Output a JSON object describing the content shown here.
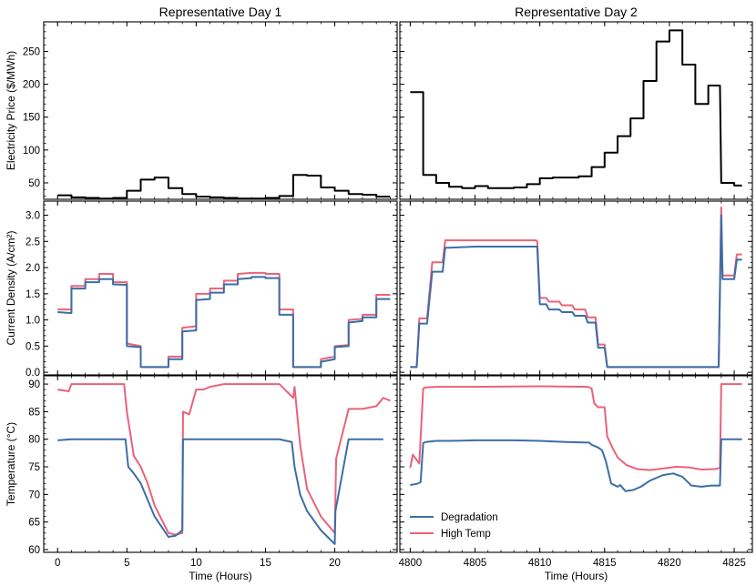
{
  "colors": {
    "price": "#000000",
    "degradation": "#3b6ea5",
    "high_temp": "#e8637a"
  },
  "chart_data": {
    "type": "line",
    "columns": [
      {
        "title": "Representative Day 1",
        "xlabel": "Time (Hours)",
        "xlim": [
          -1,
          24.5
        ],
        "xticks": [
          0,
          5,
          10,
          15,
          20
        ],
        "tick_labels": [
          "0",
          "5",
          "10",
          "15",
          "20"
        ]
      },
      {
        "title": "Representative Day 2",
        "xlabel": "Time (Hours)",
        "xlim": [
          4799.2,
          4826.4
        ],
        "xticks": [
          4800,
          4805,
          4810,
          4815,
          4820,
          4825
        ],
        "tick_labels": [
          "4800",
          "4805",
          "4810",
          "4815",
          "4820",
          "4825"
        ]
      }
    ],
    "rows": [
      {
        "ylabel": "Electricity Price ($/MWh)",
        "ylim": [
          25,
          295
        ],
        "yticks": [
          50,
          100,
          150,
          200,
          250
        ],
        "ytick_labels": [
          "50",
          "100",
          "150",
          "200",
          "250"
        ]
      },
      {
        "ylabel": "Current Density (A/cm²)",
        "ylim": [
          -0.05,
          3.27
        ],
        "yticks": [
          0.0,
          0.5,
          1.0,
          1.5,
          2.0,
          2.5,
          3.0
        ],
        "ytick_labels": [
          "0.0",
          "0.5",
          "1.0",
          "1.5",
          "2.0",
          "2.5",
          "3.0"
        ]
      },
      {
        "ylabel": "Temperature (°C)",
        "ylim": [
          59.5,
          91.5
        ],
        "yticks": [
          60,
          65,
          70,
          75,
          80,
          85,
          90
        ],
        "ytick_labels": [
          "60",
          "65",
          "70",
          "75",
          "80",
          "85",
          "90"
        ]
      }
    ],
    "legend": {
      "location": "lower-left",
      "entries": [
        "Degradation",
        "High Temp"
      ]
    },
    "day1": {
      "price": {
        "x": [
          0,
          1,
          1,
          2,
          2,
          3,
          3,
          4,
          4,
          5,
          5,
          6,
          6,
          7,
          7,
          8,
          8,
          9,
          9,
          10,
          10,
          11,
          11,
          12,
          12,
          13,
          13,
          14,
          14,
          15,
          15,
          16,
          16,
          17,
          17,
          18,
          18,
          19,
          19,
          20,
          20,
          21,
          21,
          22,
          22,
          23,
          23,
          24
        ],
        "y": [
          31,
          31,
          28,
          28,
          27,
          27,
          26,
          26,
          27,
          27,
          38,
          38,
          55,
          55,
          58,
          58,
          42,
          42,
          33,
          33,
          29,
          29,
          28,
          28,
          27,
          27,
          26,
          26,
          26,
          26,
          27,
          27,
          30,
          30,
          62,
          62,
          61,
          61,
          43,
          43,
          38,
          38,
          33,
          33,
          32,
          32,
          29,
          29
        ]
      },
      "degradation": {
        "current": {
          "x": [
            0,
            1,
            1,
            2,
            2,
            3,
            3,
            4,
            4,
            5,
            5,
            6,
            6,
            7,
            7,
            8,
            8,
            9,
            9,
            10,
            10,
            11,
            11,
            12,
            12,
            13,
            13,
            14,
            14,
            15,
            15,
            16,
            16,
            17,
            17,
            18,
            18,
            19,
            19,
            20,
            20,
            21,
            21,
            22,
            22,
            23,
            23,
            24
          ],
          "y": [
            1.15,
            1.13,
            1.6,
            1.6,
            1.72,
            1.72,
            1.78,
            1.78,
            1.68,
            1.67,
            0.5,
            0.48,
            0.1,
            0.1,
            0.1,
            0.1,
            0.25,
            0.25,
            0.78,
            0.8,
            1.38,
            1.4,
            1.52,
            1.52,
            1.68,
            1.68,
            1.78,
            1.8,
            1.82,
            1.82,
            1.8,
            1.8,
            1.1,
            1.1,
            0.1,
            0.1,
            0.1,
            0.1,
            0.2,
            0.25,
            0.48,
            0.5,
            0.95,
            0.98,
            1.05,
            1.05,
            1.4,
            1.4
          ]
        },
        "temperature": {
          "x": [
            0,
            1,
            2,
            3,
            4,
            4.9,
            5.1,
            5.5,
            6,
            7,
            8,
            8.5,
            9,
            9.05,
            10,
            15,
            16,
            16.9,
            17.1,
            17.5,
            18,
            19,
            20,
            20.05,
            21,
            23.5
          ],
          "y": [
            79.8,
            80,
            80,
            80,
            80,
            80,
            75,
            73.8,
            72,
            66,
            62.3,
            62.5,
            63.5,
            80,
            80,
            80,
            80,
            79.5,
            75,
            70,
            67,
            63.5,
            61,
            67,
            80,
            80
          ]
        }
      },
      "high_temp": {
        "current": {
          "x": [
            0,
            1,
            1,
            2,
            2,
            3,
            3,
            4,
            4,
            5,
            5,
            6,
            6,
            7,
            7,
            8,
            8,
            9,
            9,
            10,
            10,
            11,
            11,
            12,
            12,
            13,
            13,
            14,
            14,
            15,
            15,
            16,
            16,
            17,
            17,
            18,
            18,
            19,
            19,
            20,
            20,
            21,
            21,
            22,
            22,
            23,
            23,
            24
          ],
          "y": [
            1.2,
            1.2,
            1.65,
            1.65,
            1.78,
            1.78,
            1.88,
            1.88,
            1.72,
            1.72,
            0.55,
            0.5,
            0.1,
            0.1,
            0.1,
            0.1,
            0.3,
            0.3,
            0.85,
            0.88,
            1.5,
            1.5,
            1.6,
            1.6,
            1.75,
            1.75,
            1.88,
            1.9,
            1.9,
            1.9,
            1.88,
            1.88,
            1.2,
            1.2,
            0.1,
            0.1,
            0.1,
            0.1,
            0.25,
            0.3,
            0.5,
            0.52,
            1.0,
            1.02,
            1.1,
            1.1,
            1.48,
            1.48
          ]
        },
        "temperature": {
          "x": [
            0,
            0.8,
            1,
            2,
            3,
            4,
            4.8,
            5,
            5.5,
            6,
            6.5,
            7,
            8,
            8.5,
            9,
            9.05,
            9.5,
            10,
            10.5,
            11,
            12,
            13,
            14,
            15,
            16,
            16.8,
            17,
            17.1,
            17.5,
            18,
            19,
            20,
            20.1,
            21,
            22,
            23,
            23.5,
            24
          ],
          "y": [
            89,
            88.7,
            90,
            90,
            90,
            90,
            90,
            85,
            77,
            75,
            72,
            68,
            63,
            62.7,
            63,
            85,
            84.5,
            89,
            89,
            89.5,
            90,
            90,
            90,
            90,
            90,
            88,
            87.5,
            89.5,
            79,
            71,
            66,
            63,
            76.5,
            85.5,
            85.5,
            86,
            87.5,
            87
          ]
        }
      }
    },
    "day2": {
      "price": {
        "x": [
          4800,
          4801,
          4801,
          4802,
          4802,
          4803,
          4803,
          4804,
          4804,
          4805,
          4805,
          4806,
          4806,
          4807,
          4807,
          4808,
          4808,
          4809,
          4809,
          4810,
          4810,
          4811,
          4811,
          4812,
          4812,
          4813,
          4813,
          4814,
          4814,
          4815,
          4815,
          4816,
          4816,
          4817,
          4817,
          4818,
          4818,
          4819,
          4819,
          4820,
          4820,
          4821,
          4821,
          4822,
          4822,
          4823,
          4823,
          4823.9,
          4824,
          4825,
          4825,
          4825.6
        ],
        "y": [
          188,
          188,
          62,
          62,
          50,
          50,
          44,
          44,
          42,
          42,
          45,
          45,
          42,
          42,
          42,
          42,
          43,
          43,
          48,
          48,
          57,
          57,
          58,
          58,
          58,
          58,
          60,
          60,
          74,
          74,
          96,
          96,
          121,
          121,
          148,
          148,
          205,
          205,
          265,
          265,
          282,
          282,
          230,
          230,
          170,
          170,
          198,
          198,
          50,
          50,
          46,
          46
        ]
      },
      "degradation": {
        "current": {
          "x": [
            4800,
            4800.5,
            4800.7,
            4801,
            4801.3,
            4801.7,
            4801.9,
            4802.5,
            4802.7,
            4803,
            4805,
            4808,
            4809,
            4809.8,
            4810,
            4810.5,
            4810.7,
            4811.5,
            4811.7,
            4812.5,
            4812.7,
            4813.5,
            4813.7,
            4814.3,
            4814.5,
            4815,
            4815.2,
            4816,
            4820,
            4823.8,
            4824,
            4824.1,
            4824.5,
            4825,
            4825.2,
            4825.6
          ],
          "y": [
            0.1,
            0.1,
            0.93,
            0.93,
            0.93,
            1.92,
            1.92,
            1.92,
            2.38,
            2.38,
            2.4,
            2.4,
            2.4,
            2.4,
            1.3,
            1.3,
            1.2,
            1.2,
            1.15,
            1.15,
            1.08,
            1.08,
            0.95,
            0.95,
            0.47,
            0.47,
            0.1,
            0.1,
            0.1,
            0.1,
            3.0,
            1.78,
            1.78,
            1.78,
            2.15,
            2.15
          ]
        },
        "temperature": {
          "x": [
            4800,
            4800.5,
            4800.8,
            4801,
            4801.2,
            4802,
            4803,
            4805,
            4808,
            4810,
            4812,
            4813.8,
            4814,
            4814.5,
            4814.8,
            4815.1,
            4815.5,
            4816,
            4816.2,
            4816.6,
            4817.2,
            4817.8,
            4818.5,
            4819.5,
            4820.3,
            4821,
            4821.7,
            4822.5,
            4823.2,
            4823.9,
            4824,
            4825,
            4825.6
          ],
          "y": [
            71.7,
            71.9,
            72.2,
            79.3,
            79.5,
            79.7,
            79.7,
            79.8,
            79.8,
            79.7,
            79.5,
            79.4,
            79,
            78.5,
            78,
            76,
            72,
            71.4,
            71.7,
            70.6,
            70.8,
            71.4,
            72.5,
            73.5,
            73.8,
            73.2,
            71.6,
            71.4,
            71.6,
            71.6,
            80,
            80,
            80
          ]
        }
      },
      "high_temp": {
        "current": {
          "x": [
            4800,
            4800.5,
            4800.7,
            4801,
            4801.3,
            4801.7,
            4801.9,
            4802.5,
            4802.7,
            4805,
            4808,
            4809.7,
            4809.8,
            4810,
            4810.5,
            4810.7,
            4811.5,
            4811.7,
            4812.5,
            4812.7,
            4813.5,
            4813.7,
            4814.3,
            4814.5,
            4815,
            4815.2,
            4816,
            4820,
            4823.8,
            4824,
            4824.1,
            4824.5,
            4825,
            4825.2,
            4825.6
          ],
          "y": [
            0.1,
            0.1,
            1.03,
            1.03,
            1.03,
            2.1,
            2.1,
            2.1,
            2.52,
            2.52,
            2.52,
            2.52,
            2.5,
            1.42,
            1.42,
            1.35,
            1.35,
            1.28,
            1.28,
            1.2,
            1.2,
            1.05,
            1.05,
            0.53,
            0.53,
            0.1,
            0.1,
            0.1,
            0.1,
            3.15,
            1.85,
            1.85,
            1.85,
            2.25,
            2.25
          ]
        },
        "temperature": {
          "x": [
            4800,
            4800.2,
            4800.7,
            4801,
            4801.2,
            4802,
            4805,
            4810,
            4813.7,
            4814,
            4814.2,
            4814.5,
            4815,
            4815.2,
            4815.6,
            4816,
            4816.7,
            4817.5,
            4818.5,
            4819.5,
            4820.5,
            4821.5,
            4822.5,
            4823.5,
            4823.9,
            4824,
            4825,
            4825.6
          ],
          "y": [
            74.8,
            77.2,
            75.6,
            89.2,
            89.4,
            89.5,
            89.5,
            89.6,
            89.5,
            89.2,
            86.5,
            85.8,
            85.8,
            80.5,
            78.5,
            76.7,
            75.3,
            74.6,
            74.4,
            74.7,
            75,
            74.9,
            74.5,
            74.6,
            74.8,
            90,
            90,
            90
          ]
        }
      }
    }
  }
}
